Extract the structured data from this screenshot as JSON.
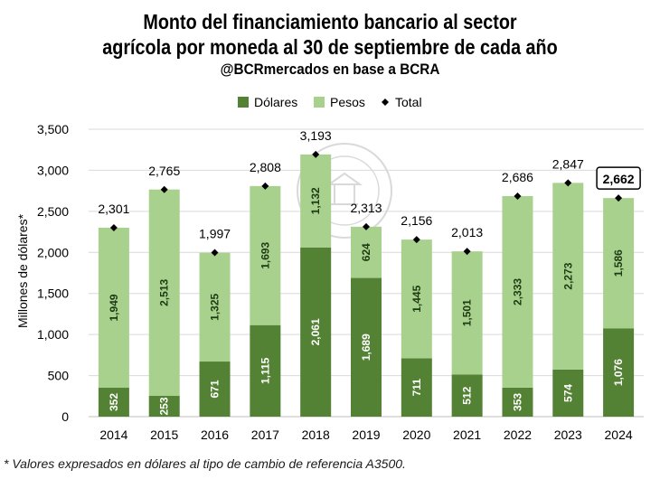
{
  "header": {
    "title_line1": "Monto del financiamiento bancario al sector",
    "title_line2": "agrícola por moneda al 30 de septiembre de cada año",
    "subtitle": "@BCRmercados en base a BCRA"
  },
  "footnote": "* Valores expresados en dólares al tipo de cambio de referencia A3500.",
  "colors": {
    "dolares": "#548235",
    "pesos": "#a9d18e",
    "total": "#000000",
    "grid": "#d9d9d9"
  },
  "chart_data": {
    "type": "bar",
    "stacked": true,
    "title": "Monto del financiamiento bancario al sector agrícola por moneda al 30 de septiembre de cada año",
    "xlabel": "",
    "ylabel": "Millones de dólares*",
    "ylim": [
      0,
      3500
    ],
    "yticks": [
      0,
      500,
      1000,
      1500,
      2000,
      2500,
      3000,
      3500
    ],
    "ytick_labels": [
      "0",
      "500",
      "1,000",
      "1,500",
      "2,000",
      "2,500",
      "3,000",
      "3,500"
    ],
    "grid": true,
    "legend_position": "top",
    "categories": [
      "2014",
      "2015",
      "2016",
      "2017",
      "2018",
      "2019",
      "2020",
      "2021",
      "2022",
      "2023",
      "2024"
    ],
    "series": [
      {
        "name": "Dólares",
        "values": [
          352,
          253,
          671,
          1115,
          2061,
          1689,
          711,
          512,
          353,
          574,
          1076
        ],
        "labels": [
          "352",
          "253",
          "671",
          "1,115",
          "2,061",
          "1,689",
          "711",
          "512",
          "353",
          "574",
          "1,076"
        ]
      },
      {
        "name": "Pesos",
        "values": [
          1949,
          2513,
          1325,
          1693,
          1132,
          624,
          1445,
          1501,
          2333,
          2273,
          1586
        ],
        "labels": [
          "1,949",
          "2,513",
          "1,325",
          "1,693",
          "1,132",
          "624",
          "1,445",
          "1,501",
          "2,333",
          "2,273",
          "1,586"
        ]
      },
      {
        "name": "Total",
        "marker": "diamond",
        "values": [
          2301,
          2765,
          1997,
          2808,
          3193,
          2313,
          2156,
          2013,
          2686,
          2847,
          2662
        ],
        "labels": [
          "2,301",
          "2,765",
          "1,997",
          "2,808",
          "3,193",
          "2,313",
          "2,156",
          "2,013",
          "2,686",
          "2,847",
          "2,662"
        ]
      }
    ],
    "highlighted_total": "2024"
  }
}
